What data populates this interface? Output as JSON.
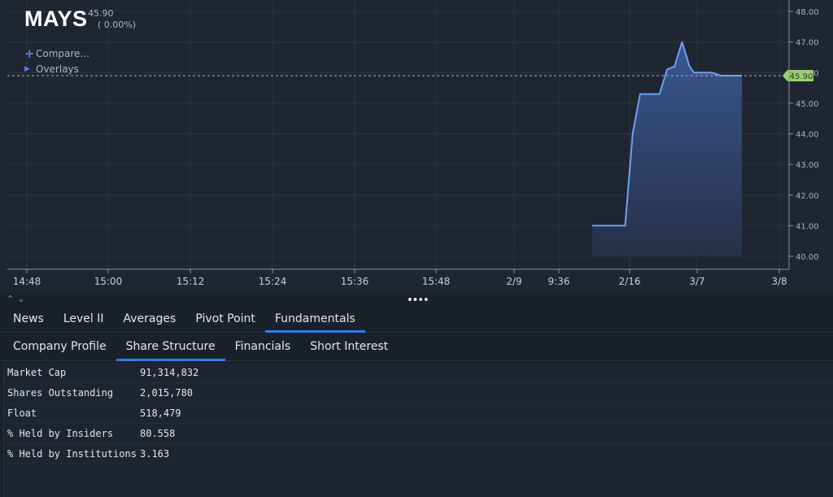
{
  "header": {
    "ticker": "MAYS",
    "last_price": "45.90",
    "change": "( 0.00%)",
    "compare_label": "Compare...",
    "overlays_label": "Overlays"
  },
  "colors": {
    "line": "#6ea0f5",
    "area_top": "#3b5a97",
    "area_bottom": "#26324a",
    "price_tag": "#9bd36b",
    "tab_underline": "#2f7de8"
  },
  "chart_data": {
    "type": "area",
    "x_tick_labels": [
      "14:48",
      "15:00",
      "15:12",
      "15:24",
      "15:36",
      "15:48",
      "2/9",
      "9:36",
      "2/16",
      "3/7",
      "3/8"
    ],
    "y_tick_labels": [
      "48.00",
      "47.00",
      "46.00",
      "45.00",
      "44.00",
      "43.00",
      "42.00",
      "41.00",
      "40.00"
    ],
    "ylim": [
      40,
      48
    ],
    "current_price_label": "45.90",
    "current_price": 45.9,
    "series": [
      {
        "points": [
          [
            0.0,
            41.0
          ],
          [
            0.22,
            41.0
          ],
          [
            0.27,
            44.0
          ],
          [
            0.32,
            45.3
          ],
          [
            0.45,
            45.3
          ],
          [
            0.5,
            46.1
          ],
          [
            0.55,
            46.2
          ],
          [
            0.6,
            47.0
          ],
          [
            0.65,
            46.2
          ],
          [
            0.68,
            46.0
          ],
          [
            0.8,
            46.0
          ],
          [
            0.86,
            45.9
          ],
          [
            1.0,
            45.9
          ]
        ]
      }
    ],
    "grid": true
  },
  "splitter": {
    "collapse_glyph": "⌃⌄",
    "handle_glyph": "••••"
  },
  "tabs": [
    {
      "label": "News"
    },
    {
      "label": "Level II"
    },
    {
      "label": "Averages"
    },
    {
      "label": "Pivot Point"
    },
    {
      "label": "Fundamentals",
      "active": true
    }
  ],
  "subtabs": [
    {
      "label": "Company Profile"
    },
    {
      "label": "Share Structure",
      "active": true
    },
    {
      "label": "Financials"
    },
    {
      "label": "Short Interest"
    }
  ],
  "share_structure": [
    {
      "label": "Market Cap",
      "value": "91,314,832"
    },
    {
      "label": "Shares Outstanding",
      "value": "2,015,780"
    },
    {
      "label": "Float",
      "value": "518,479"
    },
    {
      "label": "% Held by Insiders",
      "value": "80.558"
    },
    {
      "label": "% Held by Institutions",
      "value": "3.163"
    }
  ]
}
